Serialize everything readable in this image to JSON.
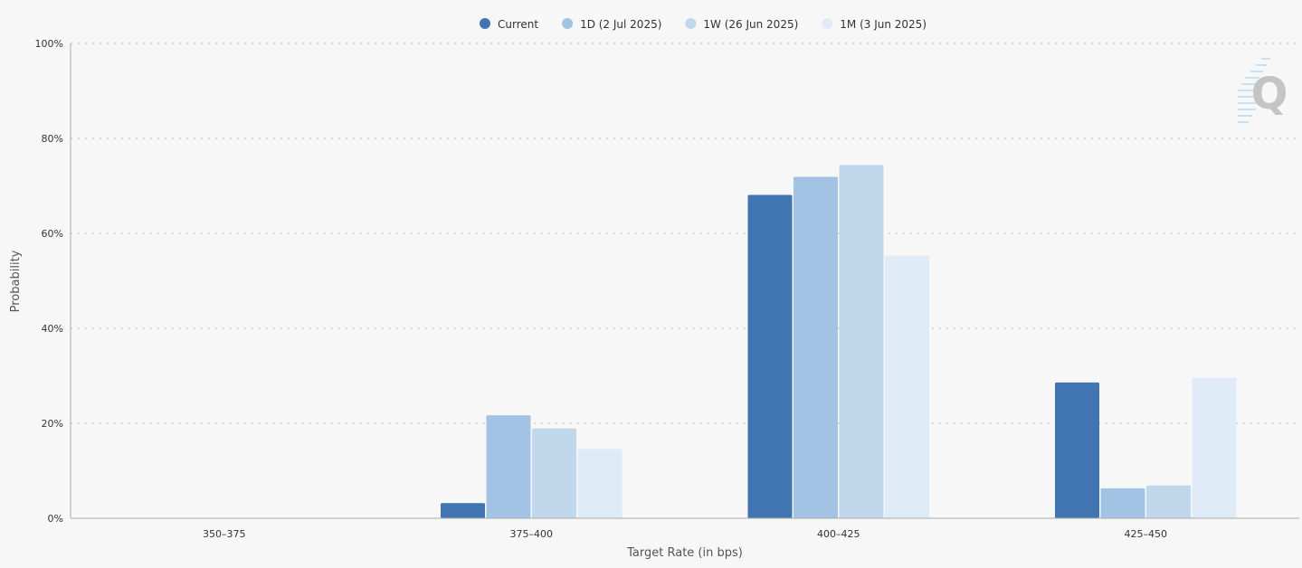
{
  "chart_data": {
    "type": "bar",
    "title": "",
    "xlabel": "Target Rate (in bps)",
    "ylabel": "Probability",
    "ylim": [
      0,
      100
    ],
    "y_ticks": [
      "0%",
      "20%",
      "40%",
      "60%",
      "80%",
      "100%"
    ],
    "categories": [
      "350-375",
      "375-400",
      "400-425",
      "425-450"
    ],
    "series": [
      {
        "name": "Current",
        "color": "#4175b1",
        "values": [
          0.0,
          3.2,
          68.1,
          28.6
        ]
      },
      {
        "name": "1D (2 Jul 2025)",
        "color": "#a2c3e4",
        "values": [
          0.0,
          21.7,
          71.9,
          6.3
        ]
      },
      {
        "name": "1W (26 Jun 2025)",
        "color": "#c0d7ec",
        "values": [
          0.0,
          18.9,
          74.4,
          6.9
        ]
      },
      {
        "name": "1M (3 Jun 2025)",
        "color": "#dfebf7",
        "values": [
          0.0,
          14.6,
          55.3,
          29.6
        ]
      }
    ],
    "grid": true,
    "legend": "top-center"
  },
  "logo": {
    "icon": "q-logo-icon",
    "letter": "Q"
  }
}
